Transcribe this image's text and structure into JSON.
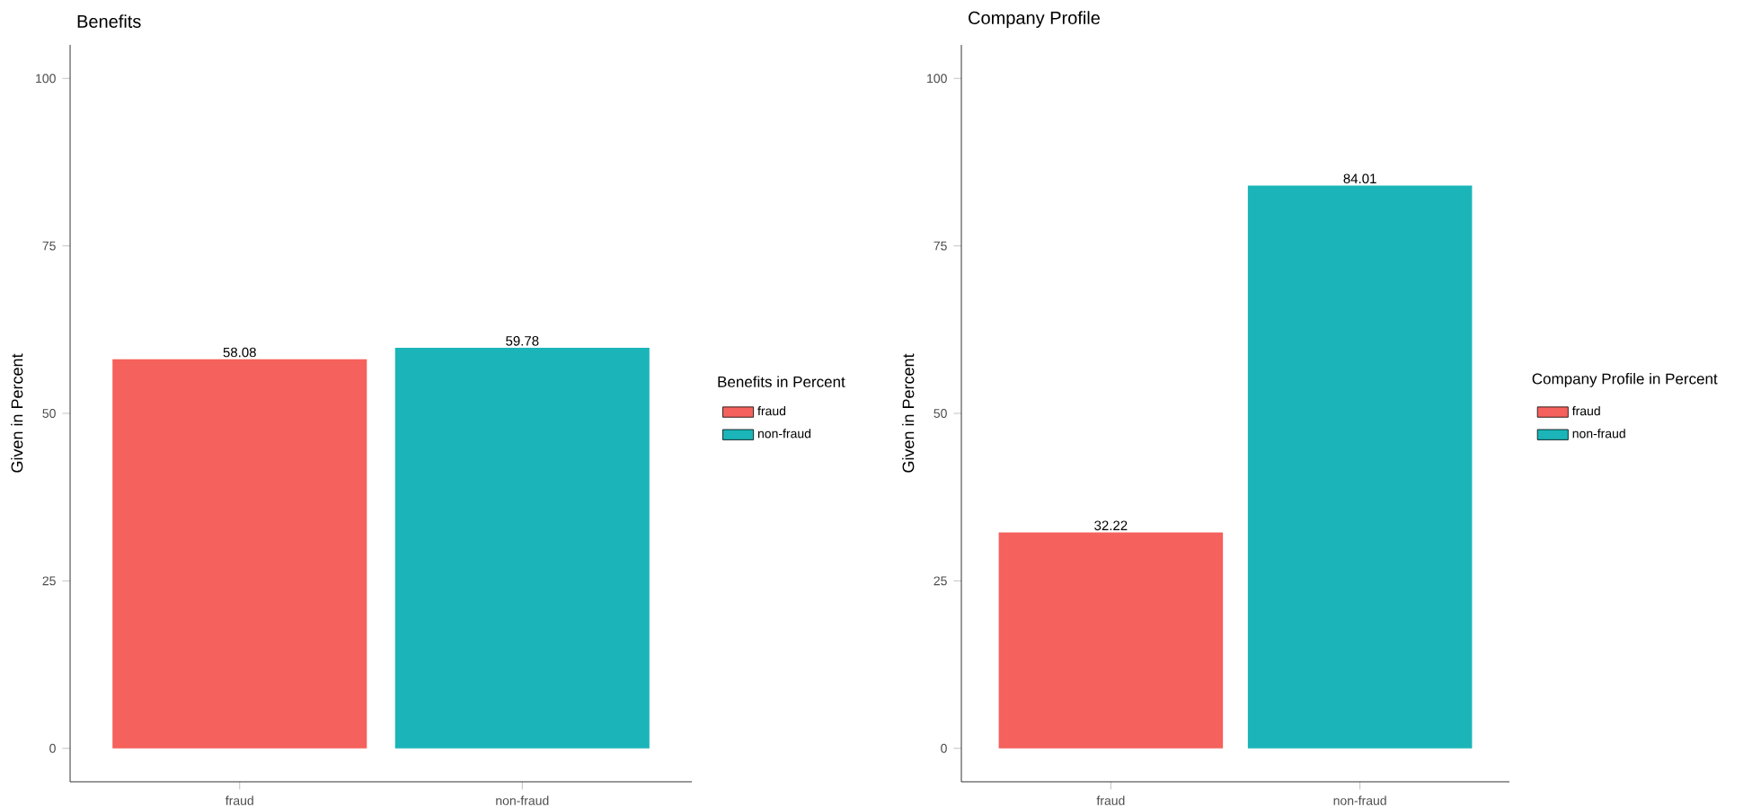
{
  "chart_data": [
    {
      "type": "bar",
      "title": "Benefits",
      "ylabel": "Given in Percent",
      "legend_title": "Benefits in Percent",
      "categories": [
        "fraud",
        "non-fraud"
      ],
      "series": [
        {
          "name": "fraud",
          "color": "#f5615c",
          "values": [
            58.08,
            null
          ]
        },
        {
          "name": "non-fraud",
          "color": "#1bb5b9",
          "values": [
            null,
            59.78
          ]
        }
      ],
      "ylim": [
        -5,
        105
      ],
      "yticks": [
        0,
        25,
        50,
        75,
        100
      ],
      "data_labels": true,
      "legend": "right",
      "grid": false
    },
    {
      "type": "bar",
      "title": "Company Profile",
      "ylabel": "Given in Percent",
      "legend_title": "Company Profile in Percent",
      "categories": [
        "fraud",
        "non-fraud"
      ],
      "series": [
        {
          "name": "fraud",
          "color": "#f5615c",
          "values": [
            32.22,
            null
          ]
        },
        {
          "name": "non-fraud",
          "color": "#1bb5b9",
          "values": [
            null,
            84.01
          ]
        }
      ],
      "ylim": [
        -5,
        105
      ],
      "yticks": [
        0,
        25,
        50,
        75,
        100
      ],
      "data_labels": true,
      "legend": "right",
      "grid": false
    }
  ]
}
